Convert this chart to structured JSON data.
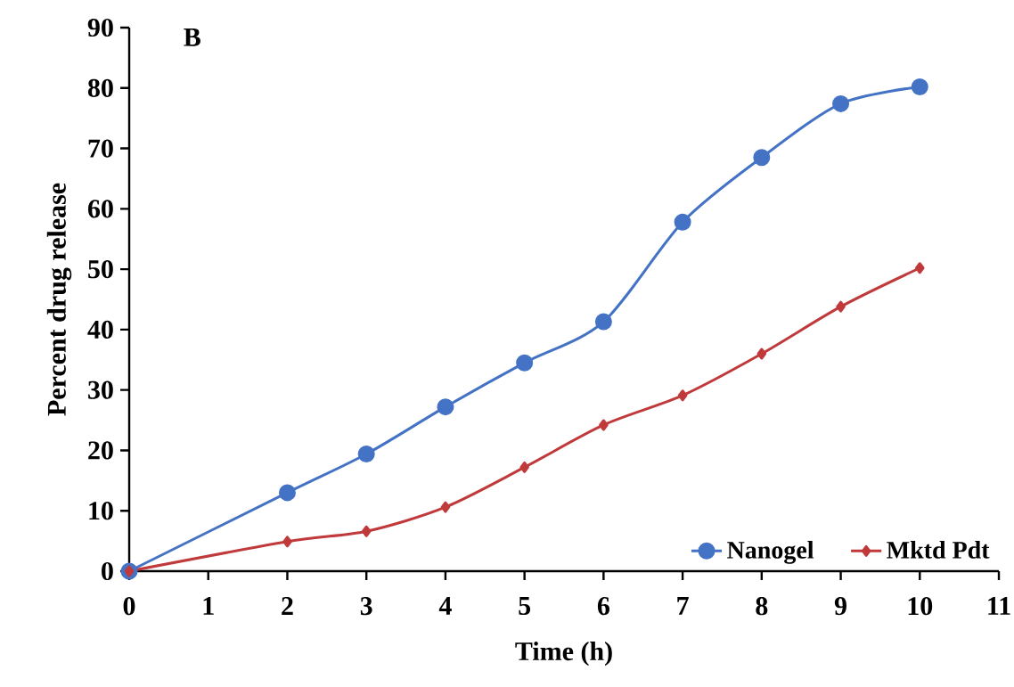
{
  "chart_data": {
    "type": "line",
    "xlabel": "Time (h)",
    "ylabel": "Percent  drug release",
    "annotations": [
      "B"
    ],
    "xlim": [
      0,
      11
    ],
    "xticks": [
      0,
      1,
      2,
      3,
      4,
      5,
      6,
      7,
      8,
      9,
      10,
      11
    ],
    "ylim": [
      0,
      90
    ],
    "yticks": [
      0,
      10,
      20,
      30,
      40,
      50,
      60,
      70,
      80,
      90
    ],
    "x": [
      0,
      2,
      3,
      4,
      5,
      6,
      7,
      8,
      9,
      10
    ],
    "grid": false,
    "legend": "bottom right",
    "line_style": "solid",
    "series": [
      {
        "name": "Nanogel",
        "color": "#4472c4",
        "marker": "circle",
        "values": [
          0,
          13.0,
          19.4,
          27.2,
          34.5,
          41.3,
          57.8,
          68.5,
          77.4,
          80.2
        ]
      },
      {
        "name": "Mktd Pdt",
        "color": "#c0393b",
        "marker": "diamond",
        "values": [
          0,
          4.9,
          6.6,
          10.6,
          17.2,
          24.2,
          29.1,
          36.0,
          43.8,
          50.2
        ]
      }
    ]
  }
}
